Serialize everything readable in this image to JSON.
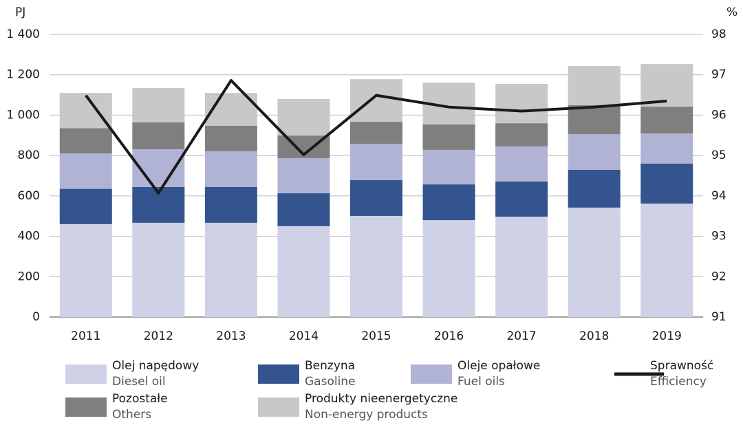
{
  "chart_data": {
    "type": "bar",
    "stacked": true,
    "ylabel": "PJ",
    "y2label": "%",
    "categories": [
      "2011",
      "2012",
      "2013",
      "2014",
      "2015",
      "2016",
      "2017",
      "2018",
      "2019"
    ],
    "series": [
      {
        "name": "Olej napędowy",
        "name_en": "Diesel oil",
        "color": "#cfd1e6",
        "values": [
          460,
          467,
          467,
          450,
          501,
          480,
          497,
          542,
          562
        ]
      },
      {
        "name": "Benzyna",
        "name_en": "Gasoline",
        "color": "#33548f",
        "values": [
          175,
          177,
          177,
          163,
          177,
          177,
          174,
          187,
          198
        ]
      },
      {
        "name": "Oleje opałowe",
        "name_en": "Fuel oils",
        "color": "#b0b3d3",
        "values": [
          175,
          187,
          177,
          174,
          180,
          171,
          174,
          177,
          149
        ]
      },
      {
        "name": "Pozostałe",
        "name_en": "Others",
        "color": "#7f7f7f",
        "values": [
          125,
          133,
          126,
          112,
          109,
          126,
          115,
          143,
          133
        ]
      },
      {
        "name": "Produkty nieenergetyczne",
        "name_en": "Non-energy products",
        "color": "#c8c8c8",
        "values": [
          175,
          170,
          163,
          181,
          211,
          207,
          195,
          194,
          211
        ]
      },
      {
        "name": "Sprawność",
        "name_en": "Efficiency",
        "color": "#1a1a1a",
        "type": "line",
        "axis": "y2",
        "values": [
          96.49,
          94.07,
          96.86,
          95.02,
          96.49,
          96.2,
          96.1,
          96.2,
          96.35
        ]
      }
    ],
    "ylim": [
      0,
      1400
    ],
    "yticks": [
      0,
      200,
      400,
      600,
      800,
      {
        "value": 1000,
        "label": "1 000"
      },
      {
        "value": 1200,
        "label": "1 200"
      },
      {
        "value": 1400,
        "label": "1 400"
      }
    ],
    "y2lim": [
      91,
      98
    ],
    "y2ticks": [
      91,
      92,
      93,
      94,
      95,
      96,
      97,
      98
    ],
    "grid": true
  }
}
